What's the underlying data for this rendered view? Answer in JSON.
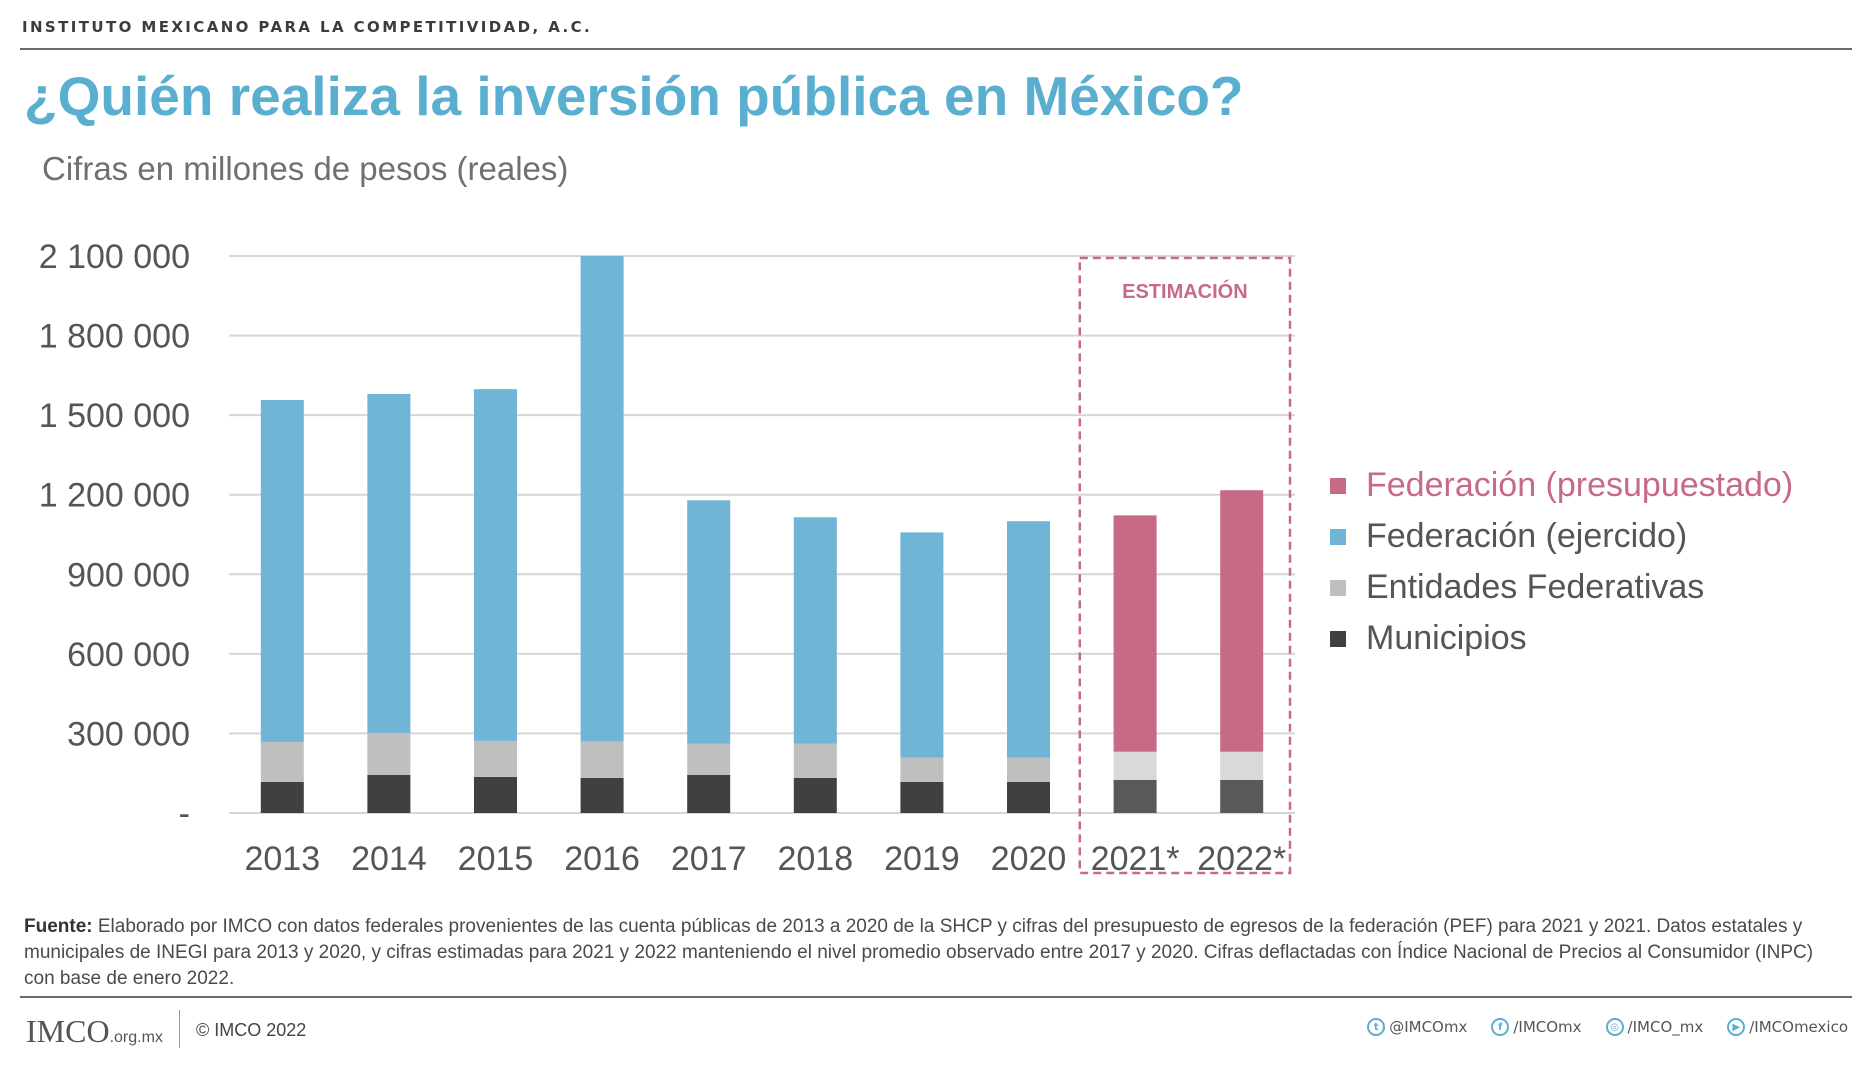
{
  "header": {
    "organization": "INSTITUTO MEXICANO PARA LA COMPETITIVIDAD, A.C.",
    "title": "¿Quién realiza la inversión pública en México?",
    "subtitle": "Cifras en millones de pesos (reales)"
  },
  "colors": {
    "title": "#5aafd0",
    "fed_presupuestado": "#c76a86",
    "fed_ejercido": "#70b5d6",
    "entidades": "#bfbfbf",
    "entidades_est": "#d9d9d9",
    "municipios": "#404040",
    "municipios_est": "#595959",
    "estimacion": "#c76a86"
  },
  "chart_data": {
    "type": "bar",
    "stacked": true,
    "title": "¿Quién realiza la inversión pública en México?",
    "subtitle": "Cifras en millones de pesos (reales)",
    "xlabel": "",
    "ylabel": "",
    "categories": [
      "2013",
      "2014",
      "2015",
      "2016",
      "2017",
      "2018",
      "2019",
      "2020",
      "2021*",
      "2022*"
    ],
    "ylim": [
      0,
      2100000
    ],
    "yticks": [
      0,
      300000,
      600000,
      900000,
      1200000,
      1500000,
      1800000,
      2100000
    ],
    "ytick_labels": [
      "-",
      "300 000",
      "600 000",
      "900 000",
      "1 200 000",
      "1 500 000",
      "1 800 000",
      "2 100 000"
    ],
    "grid": true,
    "legend_position": "right",
    "series": [
      {
        "name": "Municipios",
        "key": "municipios",
        "values": [
          117000,
          144000,
          136000,
          132000,
          144000,
          132000,
          117000,
          117000,
          125000,
          125000
        ]
      },
      {
        "name": "Entidades Federativas",
        "key": "entidades",
        "values": [
          151000,
          158000,
          136000,
          138000,
          117000,
          129000,
          91000,
          91000,
          106000,
          106000
        ]
      },
      {
        "name": "Federación (ejercido)",
        "key": "fed_ejercido",
        "values": [
          1289000,
          1278000,
          1326000,
          1830000,
          918000,
          854000,
          850000,
          892000,
          0,
          0
        ]
      },
      {
        "name": "Federación (presupuestado)",
        "key": "fed_presupuestado",
        "values": [
          0,
          0,
          0,
          0,
          0,
          0,
          0,
          0,
          891000,
          986000
        ]
      }
    ],
    "totals": [
      1557000,
      1580000,
      1598000,
      2100000,
      1179000,
      1115000,
      1058000,
      1100000,
      1122000,
      1217000
    ],
    "estimated_categories": [
      "2021*",
      "2022*"
    ],
    "annotation": "ESTIMACIÓN",
    "legend": [
      {
        "label": "Federación (presupuestado)",
        "key": "fed_presupuestado",
        "highlight": true
      },
      {
        "label": "Federación (ejercido)",
        "key": "fed_ejercido",
        "highlight": false
      },
      {
        "label": "Entidades Federativas",
        "key": "entidades",
        "highlight": false
      },
      {
        "label": "Municipios",
        "key": "municipios",
        "highlight": false
      }
    ]
  },
  "source": {
    "label": "Fuente:",
    "text": " Elaborado por IMCO con datos federales provenientes de las cuenta públicas de 2013 a 2020 de la SHCP y cifras del presupuesto de egresos de la federación (PEF) para 2021 y 2021. Datos estatales y municipales de INEGI para 2013 y 2020, y cifras estimadas para 2021 y 2022 manteniendo el nivel promedio observado entre 2017 y 2020. Cifras deflactadas con Índice Nacional de Precios al Consumidor (INPC) con base de enero 2022."
  },
  "footer": {
    "logo_text": "IMCO",
    "logo_domain": ".org.mx",
    "copyright": "© IMCO 2022",
    "socials": [
      {
        "icon": "twitter-icon",
        "glyph": "t",
        "handle": "@IMCOmx"
      },
      {
        "icon": "facebook-icon",
        "glyph": "f",
        "handle": "/IMCOmx"
      },
      {
        "icon": "instagram-icon",
        "glyph": "◎",
        "handle": "/IMCO_mx"
      },
      {
        "icon": "youtube-icon",
        "glyph": "▶",
        "handle": "/IMCOmexico"
      }
    ]
  }
}
